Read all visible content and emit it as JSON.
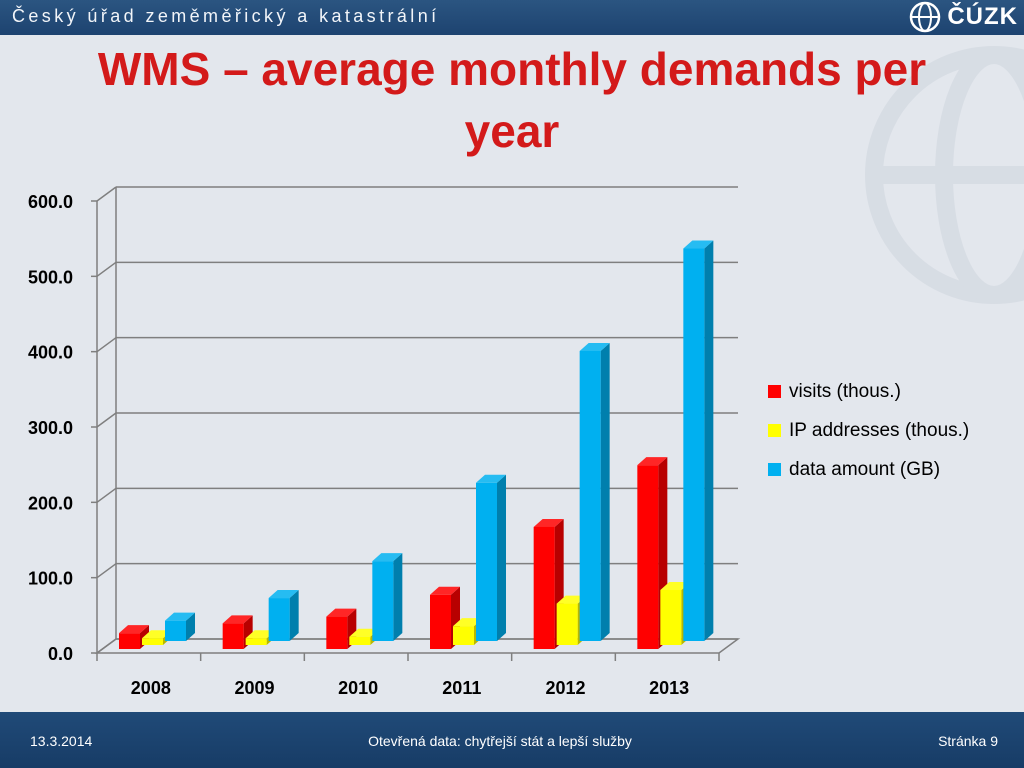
{
  "header": {
    "org_name": "Český úřad zeměměřický a katastrální",
    "logo_text": "ČÚZK"
  },
  "title": "WMS – average monthly demands per year",
  "footer": {
    "date": "13.3.2014",
    "center": "Otevřená data: chytřejší stát a lepší služby",
    "page": "Stránka 9"
  },
  "chart_data": {
    "type": "bar",
    "title": "",
    "categories": [
      "2008",
      "2009",
      "2010",
      "2011",
      "2012",
      "2013"
    ],
    "yticks": [
      "0.0",
      "100.0",
      "200.0",
      "300.0",
      "400.0",
      "500.0",
      "600.0"
    ],
    "ylim": [
      0,
      600
    ],
    "grid": true,
    "legend_position": "right",
    "series": [
      {
        "name": "visits (thous.)",
        "color": "#ff0000",
        "values": [
          21,
          34,
          43,
          72,
          162,
          244
        ]
      },
      {
        "name": "IP addresses (thous.)",
        "color": "#ffff00",
        "values": [
          9,
          9,
          11,
          25,
          55,
          73
        ]
      },
      {
        "name": "data amount (GB)",
        "color": "#00b0f0",
        "values": [
          27,
          57,
          106,
          210,
          385,
          521
        ]
      }
    ]
  }
}
